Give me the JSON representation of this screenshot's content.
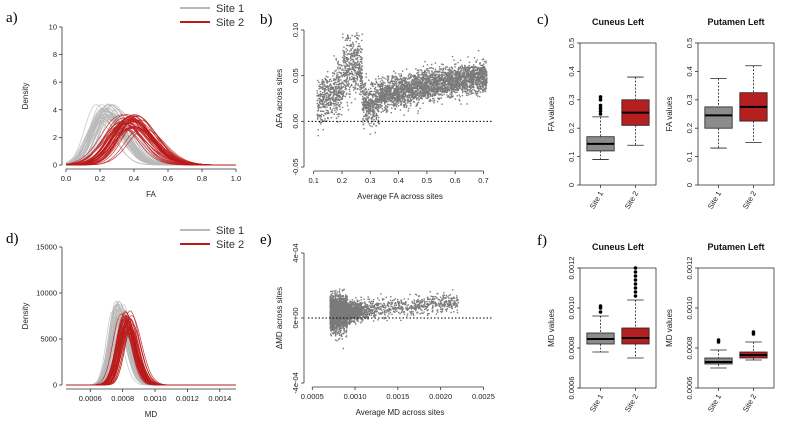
{
  "colors": {
    "site1": "#b8b8b8",
    "site2": "#bb1a1a",
    "scatter": "#7a7a7a",
    "box1": "#8c8c8c",
    "box2": "#b51f1f"
  },
  "chart_data": [
    {
      "id": "a",
      "panel": "a)",
      "type": "line",
      "title": "",
      "xlabel": "FA",
      "ylabel": "Density",
      "xlim": [
        0,
        1
      ],
      "ylim": [
        0,
        10
      ],
      "xticks": [
        "0.0",
        "0.2",
        "0.4",
        "0.6",
        "0.8",
        "1.0"
      ],
      "yticks": [
        "0",
        "2",
        "4",
        "6",
        "8",
        "10"
      ],
      "legend": [
        "Site 1",
        "Site 2"
      ],
      "series": [
        {
          "name": "Site 1",
          "peak_mean": 0.24,
          "peak_height": 3.9,
          "sd": 0.09,
          "curves": 40
        },
        {
          "name": "Site 2",
          "peak_mean": 0.33,
          "peak_height": 3.7,
          "sd": 0.11,
          "curves": 40
        }
      ]
    },
    {
      "id": "b",
      "panel": "b)",
      "type": "scatter",
      "title": "",
      "xlabel": "Average FA across sites",
      "ylabel": "ΔFA across sites",
      "xlim": [
        0.08,
        0.73
      ],
      "ylim": [
        -0.05,
        0.1
      ],
      "xticks": [
        "0.1",
        "0.2",
        "0.3",
        "0.4",
        "0.5",
        "0.6",
        "0.7"
      ],
      "yticks": [
        "-0.05",
        "0.00",
        "0.05",
        "0.10"
      ],
      "reference_line": 0
    },
    {
      "id": "c",
      "panel": "c)",
      "type": "box",
      "ylabel": "FA values",
      "ylim": [
        0,
        0.5
      ],
      "yticks": [
        "0",
        "0.1",
        "0.2",
        "0.3",
        "0.4",
        "0.5"
      ],
      "categories": [
        "Site 1",
        "Site 2"
      ],
      "subplots": [
        {
          "title": "Cuneus Left",
          "boxes": [
            {
              "name": "Site 1",
              "min": 0.09,
              "q1": 0.12,
              "median": 0.145,
              "q3": 0.17,
              "max": 0.24,
              "outliers": [
                0.25,
                0.26,
                0.27,
                0.28,
                0.3,
                0.31
              ]
            },
            {
              "name": "Site 2",
              "min": 0.14,
              "q1": 0.21,
              "median": 0.255,
              "q3": 0.3,
              "max": 0.38,
              "outliers": []
            }
          ]
        },
        {
          "title": "Putamen Left",
          "boxes": [
            {
              "name": "Site 1",
              "min": 0.13,
              "q1": 0.2,
              "median": 0.245,
              "q3": 0.275,
              "max": 0.375,
              "outliers": []
            },
            {
              "name": "Site 2",
              "min": 0.15,
              "q1": 0.225,
              "median": 0.275,
              "q3": 0.325,
              "max": 0.42,
              "outliers": []
            }
          ]
        }
      ]
    },
    {
      "id": "d",
      "panel": "d)",
      "type": "line",
      "title": "",
      "xlabel": "MD",
      "ylabel": "Density",
      "xlim": [
        0.00045,
        0.0015
      ],
      "ylim": [
        0,
        15000
      ],
      "xticks": [
        "0.0006",
        "0.0008",
        "0.0010",
        "0.0012",
        "0.0014"
      ],
      "yticks": [
        "0",
        "5000",
        "10000",
        "15000"
      ],
      "legend": [
        "Site 1",
        "Site 2"
      ],
      "series": [
        {
          "name": "Site 1",
          "peak_mean": 0.00077,
          "peak_height": 8000,
          "sd": 5e-05,
          "curves": 40
        },
        {
          "name": "Site 2",
          "peak_mean": 0.00081,
          "peak_height": 8200,
          "sd": 5e-05,
          "curves": 40
        }
      ]
    },
    {
      "id": "e",
      "panel": "e)",
      "type": "scatter",
      "title": "",
      "xlabel": "Average MD across sites",
      "ylabel": "ΔMD across sites",
      "xlim": [
        0.00045,
        0.0026
      ],
      "ylim": [
        -0.0004,
        0.0004
      ],
      "xticks": [
        "0.0005",
        "0.0010",
        "0.0015",
        "0.0020",
        "0.0025"
      ],
      "yticks": [
        "-4e-04",
        "0e+00",
        "4e-04"
      ],
      "reference_line": 0
    },
    {
      "id": "f",
      "panel": "f)",
      "type": "box",
      "ylabel": "MD values",
      "ylim": [
        0.0006,
        0.0012
      ],
      "yticks": [
        "0.0006",
        "0.0008",
        "0.0010",
        "0.0012"
      ],
      "categories": [
        "Site 1",
        "Site 2"
      ],
      "subplots": [
        {
          "title": "Cuneus Left",
          "boxes": [
            {
              "name": "Site 1",
              "min": 0.00078,
              "q1": 0.00082,
              "median": 0.000845,
              "q3": 0.000875,
              "max": 0.00096,
              "outliers": [
                0.00098,
                0.001,
                0.00101
              ]
            },
            {
              "name": "Site 2",
              "min": 0.00075,
              "q1": 0.00082,
              "median": 0.00085,
              "q3": 0.0009,
              "max": 0.00104,
              "outliers": [
                0.00106,
                0.00108,
                0.0011,
                0.00112,
                0.00114,
                0.00116,
                0.00118,
                0.0012
              ]
            }
          ]
        },
        {
          "title": "Putamen Left",
          "boxes": [
            {
              "name": "Site 1",
              "min": 0.0007,
              "q1": 0.00072,
              "median": 0.00073,
              "q3": 0.00075,
              "max": 0.00079,
              "outliers": [
                0.00083,
                0.00084
              ]
            },
            {
              "name": "Site 2",
              "min": 0.00074,
              "q1": 0.00075,
              "median": 0.000765,
              "q3": 0.00078,
              "max": 0.00083,
              "outliers": [
                0.00087,
                0.00088
              ]
            }
          ]
        }
      ]
    }
  ]
}
